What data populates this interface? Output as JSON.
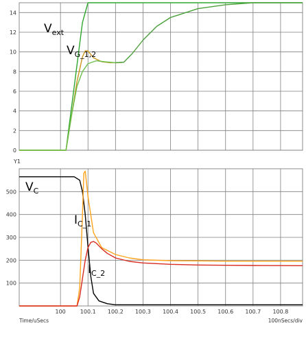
{
  "chart_data": [
    {
      "type": "line",
      "ylabel": "",
      "xlim": [
        99.85,
        100.88
      ],
      "ylim": [
        0,
        15
      ],
      "yticks": [
        0,
        2,
        4,
        6,
        8,
        10,
        12,
        14
      ],
      "grid": true,
      "annotations": [
        {
          "main": "V",
          "sub": "ext"
        },
        {
          "main": "V",
          "sub": "G_1,2"
        }
      ],
      "series": [
        {
          "color": "#2ea62e",
          "x": [
            99.85,
            100.0,
            100.02,
            100.08,
            100.1,
            100.88
          ],
          "y": [
            0,
            0,
            0,
            13.0,
            15.0,
            15.0
          ]
        },
        {
          "color": "#c8961e",
          "x": [
            99.85,
            100.0,
            100.02,
            100.04,
            100.06,
            100.08,
            100.09,
            100.1,
            100.12,
            100.15,
            100.18,
            100.21,
            100.23
          ],
          "y": [
            0,
            0,
            0,
            3.5,
            7.0,
            9.5,
            10.1,
            10.1,
            9.4,
            9.0,
            8.9,
            8.9,
            8.95
          ]
        },
        {
          "color": "#6cbf4a",
          "x": [
            99.85,
            100.0,
            100.02,
            100.04,
            100.06,
            100.08,
            100.1,
            100.13,
            100.16,
            100.2,
            100.23
          ],
          "y": [
            0,
            0,
            0,
            3.5,
            6.5,
            8.0,
            8.8,
            9.1,
            9.0,
            8.9,
            8.95
          ]
        },
        {
          "color": "#4aa03a",
          "x": [
            100.2,
            100.23,
            100.26,
            100.3,
            100.35,
            100.4,
            100.5,
            100.6,
            100.7,
            100.8,
            100.88
          ],
          "y": [
            8.9,
            8.95,
            9.8,
            11.2,
            12.6,
            13.5,
            14.4,
            14.8,
            15.0,
            15.0,
            15.0
          ]
        }
      ]
    },
    {
      "type": "line",
      "ylabel": "Y1",
      "xlabel": "Time/uSecs",
      "scale_note": "100nSecs/div",
      "xlim": [
        99.85,
        100.88
      ],
      "ylim": [
        0,
        600
      ],
      "yticks": [
        100,
        200,
        300,
        400,
        500
      ],
      "xticks": [
        "100",
        "100.1",
        "100.2",
        "100.3",
        "100.4",
        "100.5",
        "100.6",
        "100.7",
        "100.8"
      ],
      "grid": true,
      "annotations": [
        {
          "main": "V",
          "sub": "C"
        },
        {
          "main": "I",
          "sub": "C_1"
        },
        {
          "main": "I",
          "sub": "C_2"
        }
      ],
      "series": [
        {
          "color": "#000000",
          "x": [
            99.85,
            100.05,
            100.07,
            100.08,
            100.09,
            100.1,
            100.11,
            100.12,
            100.14,
            100.17,
            100.2,
            100.88
          ],
          "y": [
            565,
            565,
            550,
            500,
            400,
            260,
            130,
            55,
            22,
            10,
            5,
            5
          ]
        },
        {
          "color": "#ffa31a",
          "x": [
            99.85,
            100.06,
            100.07,
            100.08,
            100.085,
            100.09,
            100.1,
            100.12,
            100.15,
            100.2,
            100.25,
            100.3,
            100.4,
            100.5,
            100.6,
            100.7,
            100.88
          ],
          "y": [
            0,
            0,
            80,
            400,
            580,
            590,
            480,
            320,
            255,
            225,
            210,
            202,
            198,
            197,
            196,
            196,
            196
          ]
        },
        {
          "color": "#d92a1e",
          "x": [
            99.85,
            100.06,
            100.07,
            100.08,
            100.09,
            100.1,
            100.11,
            100.12,
            100.13,
            100.15,
            100.17,
            100.2,
            100.25,
            100.3,
            100.4,
            100.5,
            100.6,
            100.7,
            100.88
          ],
          "y": [
            0,
            0,
            40,
            120,
            200,
            255,
            278,
            282,
            275,
            250,
            230,
            210,
            195,
            188,
            182,
            179,
            178,
            177,
            176
          ]
        }
      ]
    }
  ]
}
